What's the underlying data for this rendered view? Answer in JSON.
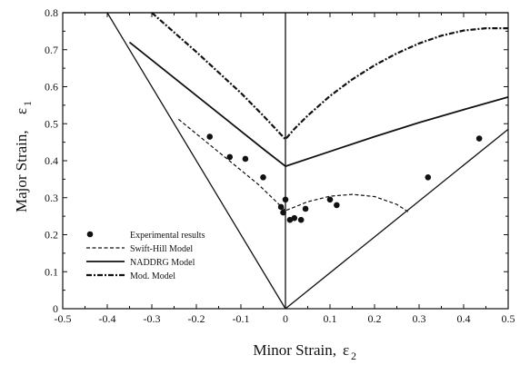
{
  "chart_data": {
    "type": "scatter",
    "xlabel": "Minor Strain,",
    "xlabel_symbol": "ε",
    "xlabel_sub": "2",
    "ylabel": "Major Strain,",
    "ylabel_symbol": "ε",
    "ylabel_sub": "1",
    "xlim": [
      -0.5,
      0.5
    ],
    "ylim": [
      0,
      0.8
    ],
    "xticks": [
      "-0.5",
      "-0.4",
      "-0.3",
      "-0.2",
      "-0.1",
      "0",
      "0.1",
      "0.2",
      "0.3",
      "0.4",
      "0.5"
    ],
    "xtick_values": [
      -0.5,
      -0.4,
      -0.3,
      -0.2,
      -0.1,
      0,
      0.1,
      0.2,
      0.3,
      0.4,
      0.5
    ],
    "yticks": [
      "0",
      "0.1",
      "0.2",
      "0.3",
      "0.4",
      "0.5",
      "0.6",
      "0.7",
      "0.8"
    ],
    "ytick_values": [
      0,
      0.1,
      0.2,
      0.3,
      0.4,
      0.5,
      0.6,
      0.7,
      0.8
    ],
    "grid": false,
    "legend_position": "bottom-left",
    "legend": [
      {
        "label": "Experimental results",
        "style": "marker"
      },
      {
        "label": "Swift-Hill Model",
        "style": "dashed"
      },
      {
        "label": "NADDRG Model",
        "style": "solid"
      },
      {
        "label": "Mod. Model",
        "style": "dashdot"
      }
    ],
    "reference_lines": [
      {
        "x": [
          -0.4,
          0
        ],
        "y": [
          0.8,
          0
        ]
      },
      {
        "x": [
          0,
          0.5
        ],
        "y": [
          0,
          0.485
        ]
      },
      {
        "x": [
          0,
          0
        ],
        "y": [
          0,
          0.8
        ]
      },
      {
        "x": [
          -0.5,
          0.5
        ],
        "y": [
          0.8,
          0.8
        ]
      }
    ],
    "series": [
      {
        "name": "Experimental results",
        "style": "marker",
        "x": [
          -0.17,
          -0.125,
          -0.09,
          -0.05,
          -0.01,
          -0.005,
          0.0,
          0.01,
          0.02,
          0.035,
          0.045,
          0.1,
          0.115,
          0.32,
          0.435
        ],
        "y": [
          0.465,
          0.41,
          0.405,
          0.355,
          0.275,
          0.26,
          0.295,
          0.24,
          0.245,
          0.24,
          0.27,
          0.295,
          0.28,
          0.355,
          0.46
        ]
      },
      {
        "name": "Swift-Hill Model",
        "style": "dashed",
        "x": [
          -0.24,
          -0.18,
          -0.12,
          -0.06,
          0.0,
          0.05,
          0.1,
          0.15,
          0.2,
          0.25,
          0.275
        ],
        "y": [
          0.512,
          0.453,
          0.394,
          0.335,
          0.265,
          0.289,
          0.304,
          0.309,
          0.303,
          0.282,
          0.262
        ]
      },
      {
        "name": "NADDRG Model",
        "style": "solid",
        "x": [
          -0.35,
          -0.25,
          -0.15,
          -0.05,
          0.0,
          0.1,
          0.2,
          0.3,
          0.4,
          0.5
        ],
        "y": [
          0.72,
          0.624,
          0.528,
          0.432,
          0.385,
          0.425,
          0.465,
          0.503,
          0.538,
          0.572
        ]
      },
      {
        "name": "Mod. Model",
        "style": "dashdot",
        "x": [
          -0.3,
          -0.2,
          -0.1,
          -0.05,
          0.0,
          0.02,
          0.05,
          0.1,
          0.15,
          0.2,
          0.25,
          0.3,
          0.35,
          0.4,
          0.45,
          0.5
        ],
        "y": [
          0.8,
          0.694,
          0.583,
          0.522,
          0.458,
          0.486,
          0.522,
          0.575,
          0.62,
          0.658,
          0.69,
          0.717,
          0.738,
          0.752,
          0.758,
          0.758
        ]
      }
    ]
  }
}
